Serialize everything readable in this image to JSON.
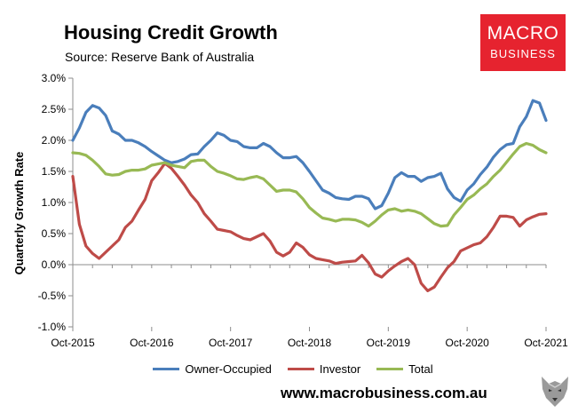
{
  "header": {
    "title": "Housing Credit Growth",
    "subtitle": "Source: Reserve Bank of Australia"
  },
  "logo": {
    "line1": "MACRO",
    "line2": "BUSINESS"
  },
  "footer": {
    "url": "www.macrobusiness.com.au"
  },
  "colors": {
    "owner": "#4a7ebb",
    "investor": "#be4b48",
    "total": "#98b954",
    "logo_bg": "#e6232f"
  },
  "chart_data": {
    "type": "line",
    "title": "Housing Credit Growth",
    "ylabel": "Quarterly Growth Rate",
    "xlabel": "",
    "ylim": [
      -1.0,
      3.0
    ],
    "yticks": [
      "-1.0%",
      "-0.5%",
      "0.0%",
      "0.5%",
      "1.0%",
      "1.5%",
      "2.0%",
      "2.5%",
      "3.0%"
    ],
    "yticks_values": [
      -1.0,
      -0.5,
      0.0,
      0.5,
      1.0,
      1.5,
      2.0,
      2.5,
      3.0
    ],
    "xticks": [
      "Oct-2015",
      "Oct-2016",
      "Oct-2017",
      "Oct-2018",
      "Oct-2019",
      "Oct-2020",
      "Oct-2021"
    ],
    "x_start": "Oct-2015",
    "x_end": "Oct-2021",
    "months": 73,
    "legend_position": "bottom",
    "series": [
      {
        "name": "Owner-Occupied",
        "color": "#4a7ebb",
        "values": [
          2.0,
          2.2,
          2.45,
          2.56,
          2.52,
          2.4,
          2.15,
          2.1,
          2.0,
          2.0,
          1.96,
          1.9,
          1.82,
          1.75,
          1.68,
          1.64,
          1.66,
          1.7,
          1.77,
          1.78,
          1.9,
          2.0,
          2.12,
          2.08,
          2.0,
          1.98,
          1.9,
          1.88,
          1.88,
          1.95,
          1.9,
          1.8,
          1.72,
          1.72,
          1.74,
          1.64,
          1.5,
          1.35,
          1.2,
          1.15,
          1.08,
          1.06,
          1.05,
          1.1,
          1.1,
          1.06,
          0.9,
          0.95,
          1.15,
          1.4,
          1.48,
          1.42,
          1.42,
          1.34,
          1.4,
          1.42,
          1.47,
          1.22,
          1.08,
          1.02,
          1.2,
          1.3,
          1.45,
          1.57,
          1.73,
          1.85,
          1.93,
          1.95,
          2.22,
          2.38,
          2.64,
          2.6,
          2.32
        ]
      },
      {
        "name": "Investor",
        "color": "#be4b48",
        "values": [
          1.42,
          0.65,
          0.3,
          0.18,
          0.1,
          0.2,
          0.3,
          0.4,
          0.6,
          0.7,
          0.88,
          1.05,
          1.35,
          1.48,
          1.63,
          1.55,
          1.42,
          1.28,
          1.12,
          1.0,
          0.82,
          0.7,
          0.57,
          0.55,
          0.53,
          0.47,
          0.42,
          0.4,
          0.45,
          0.5,
          0.38,
          0.2,
          0.14,
          0.2,
          0.35,
          0.28,
          0.16,
          0.1,
          0.08,
          0.06,
          0.02,
          0.04,
          0.05,
          0.06,
          0.15,
          0.03,
          -0.15,
          -0.2,
          -0.1,
          -0.02,
          0.05,
          0.1,
          0.0,
          -0.3,
          -0.42,
          -0.36,
          -0.2,
          -0.05,
          0.05,
          0.22,
          0.27,
          0.32,
          0.35,
          0.45,
          0.6,
          0.78,
          0.78,
          0.76,
          0.62,
          0.72,
          0.77,
          0.81,
          0.82
        ]
      },
      {
        "name": "Total",
        "color": "#98b954",
        "values": [
          1.8,
          1.79,
          1.76,
          1.68,
          1.58,
          1.46,
          1.44,
          1.45,
          1.5,
          1.52,
          1.52,
          1.54,
          1.6,
          1.62,
          1.64,
          1.6,
          1.58,
          1.56,
          1.66,
          1.68,
          1.68,
          1.58,
          1.5,
          1.47,
          1.43,
          1.38,
          1.37,
          1.4,
          1.42,
          1.38,
          1.28,
          1.18,
          1.2,
          1.2,
          1.17,
          1.06,
          0.92,
          0.83,
          0.75,
          0.73,
          0.7,
          0.73,
          0.73,
          0.72,
          0.68,
          0.62,
          0.7,
          0.8,
          0.88,
          0.9,
          0.86,
          0.88,
          0.86,
          0.82,
          0.74,
          0.66,
          0.62,
          0.63,
          0.8,
          0.92,
          1.05,
          1.12,
          1.22,
          1.3,
          1.42,
          1.52,
          1.65,
          1.78,
          1.9,
          1.95,
          1.92,
          1.85,
          1.8
        ]
      }
    ]
  }
}
